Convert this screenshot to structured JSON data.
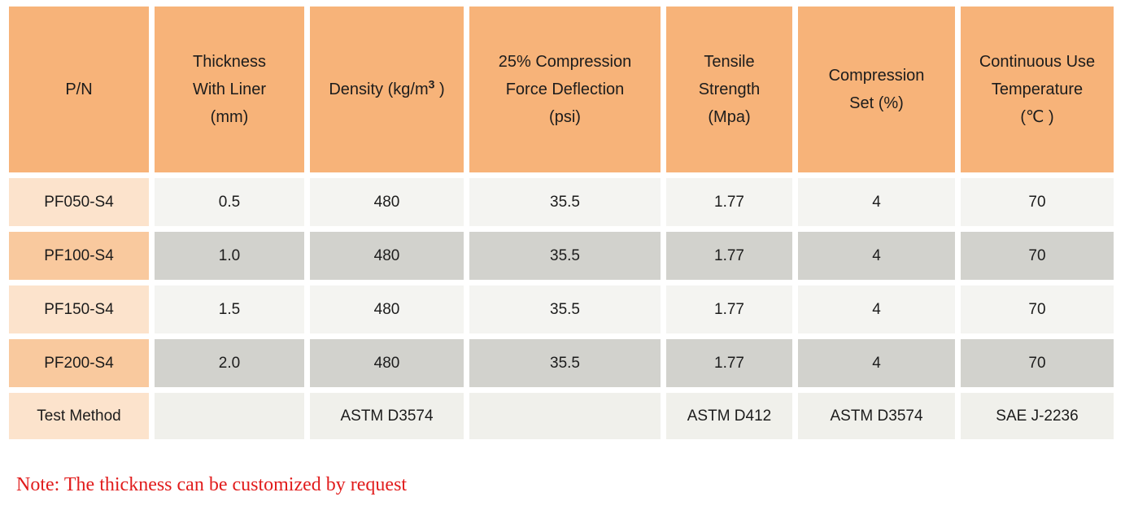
{
  "table": {
    "columns": [
      {
        "lines": [
          "P/N"
        ]
      },
      {
        "lines": [
          "Thickness",
          "With Liner",
          "(mm)"
        ]
      },
      {
        "density_prefix": "Density (kg/m",
        "density_sup": "3",
        "density_suffix": " )"
      },
      {
        "lines": [
          "25% Compression",
          "Force Deflection",
          "(psi)"
        ]
      },
      {
        "lines": [
          "Tensile",
          "Strength",
          "(Mpa)"
        ]
      },
      {
        "lines": [
          "Compression",
          "Set (%)"
        ]
      },
      {
        "lines": [
          "Continuous Use",
          "Temperature",
          "(℃ )"
        ]
      }
    ],
    "rows": [
      {
        "pn": "PF050-S4",
        "values": [
          "0.5",
          "480",
          "35.5",
          "1.77",
          "4",
          "70"
        ]
      },
      {
        "pn": "PF100-S4",
        "values": [
          "1.0",
          "480",
          "35.5",
          "1.77",
          "4",
          "70"
        ]
      },
      {
        "pn": "PF150-S4",
        "values": [
          "1.5",
          "480",
          "35.5",
          "1.77",
          "4",
          "70"
        ]
      },
      {
        "pn": "PF200-S4",
        "values": [
          "2.0",
          "480",
          "35.5",
          "1.77",
          "4",
          "70"
        ]
      }
    ],
    "test_method_row": {
      "label": "Test Method",
      "values": [
        "",
        "ASTM D3574",
        "",
        "ASTM D412",
        "ASTM D3574",
        "SAE J-2236"
      ]
    }
  },
  "note": {
    "text": "Note: The thickness can be customized by request"
  },
  "colors": {
    "header_bg": "#f7b379",
    "pn_light_bg": "#fce3cc",
    "pn_dark_bg": "#f9c99e",
    "cell_light_bg": "#f4f4f1",
    "cell_dark_bg": "#d2d2cd",
    "test_cell_bg": "#f0f0eb",
    "note_text": "#e11c1c",
    "text": "#1c1c1c"
  }
}
